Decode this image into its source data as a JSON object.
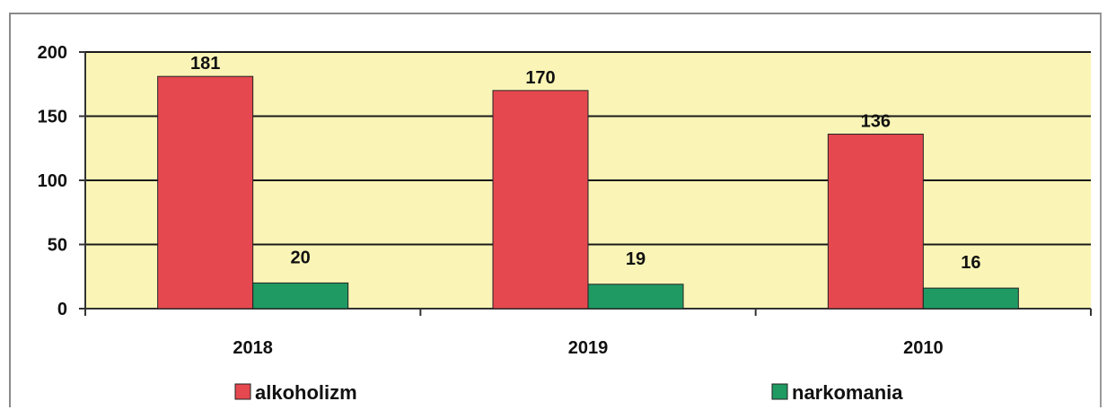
{
  "colors": {
    "plot_background": "#faf5b6",
    "alkoholizm": "#e5484f",
    "narkomania": "#1f9a62",
    "gridline": "#1a1a1a"
  },
  "chart_data": {
    "type": "bar",
    "title": "",
    "xlabel": "",
    "ylabel": "",
    "categories": [
      "2018",
      "2019",
      "2010"
    ],
    "series": [
      {
        "name": "alkoholizm",
        "values": [
          181,
          170,
          136
        ]
      },
      {
        "name": "narkomania",
        "values": [
          20,
          19,
          16
        ]
      }
    ],
    "ylim": [
      0,
      200
    ],
    "yticks": [
      "0",
      "50",
      "100",
      "150",
      "200"
    ],
    "data_labels": [
      [
        "181",
        "170",
        "136"
      ],
      [
        "20",
        "19",
        "16"
      ]
    ],
    "grid": true,
    "legend_position": "bottom"
  }
}
